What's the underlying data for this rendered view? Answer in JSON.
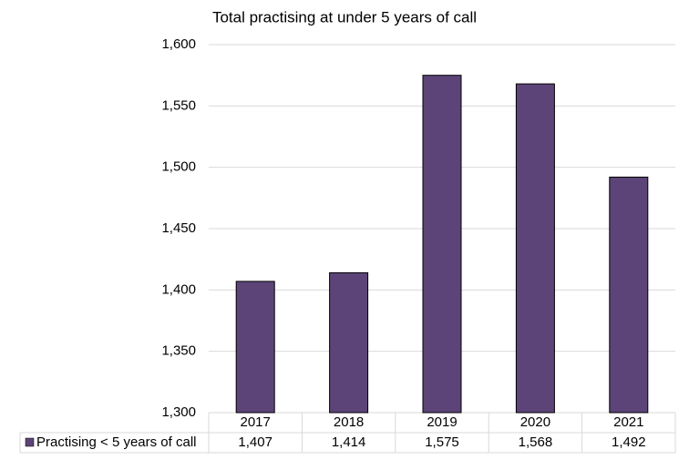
{
  "chart_data": {
    "type": "bar",
    "title": "Total practising at under 5 years of call",
    "categories": [
      "2017",
      "2018",
      "2019",
      "2020",
      "2021"
    ],
    "series": [
      {
        "name": "Practising < 5 years of call",
        "color": "#5c4479",
        "values": [
          1407,
          1414,
          1575,
          1568,
          1492
        ],
        "value_labels": [
          "1,407",
          "1,414",
          "1,575",
          "1,568",
          "1,492"
        ]
      }
    ],
    "ylim": [
      1300,
      1600
    ],
    "yticks": [
      {
        "value": 1300,
        "label": "1,300"
      },
      {
        "value": 1350,
        "label": "1,350"
      },
      {
        "value": 1400,
        "label": "1,400"
      },
      {
        "value": 1450,
        "label": "1,450"
      },
      {
        "value": 1500,
        "label": "1,500"
      },
      {
        "value": 1550,
        "label": "1,550"
      },
      {
        "value": 1600,
        "label": "1,600"
      }
    ],
    "grid": true,
    "data_table": true
  }
}
